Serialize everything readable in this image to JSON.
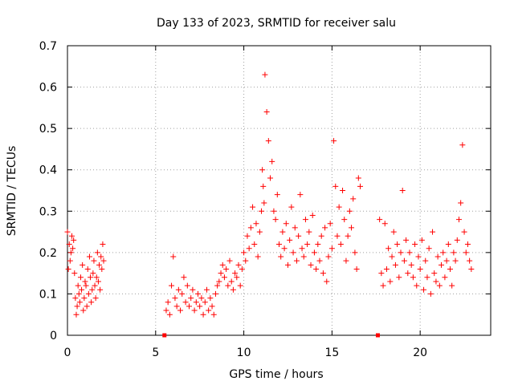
{
  "colors": {
    "series": "#ff0000",
    "axis": "#000000",
    "grid": "#a0a0a0"
  },
  "chart_data": {
    "type": "scatter",
    "title": "Day 133 of 2023, SRMTID for receiver salu",
    "xlabel": "GPS time / hours",
    "ylabel": "SRMTID / TECUs",
    "xlim": [
      0,
      24
    ],
    "ylim": [
      0,
      0.7
    ],
    "xticks": [
      0,
      5,
      10,
      15,
      20
    ],
    "xtick_labels": [
      "0",
      "5",
      "10",
      "15",
      "20"
    ],
    "yticks": [
      0,
      0.1,
      0.2,
      0.3,
      0.4,
      0.5,
      0.6,
      0.7
    ],
    "ytick_labels": [
      "0",
      "0.1",
      "0.2",
      "0.3",
      "0.4",
      "0.5",
      "0.6",
      "0.7"
    ],
    "grid": true,
    "marker": "plus",
    "zero_markers": {
      "x": [
        5.5,
        17.6
      ],
      "y": [
        0,
        0
      ]
    },
    "series": [
      {
        "name": "SRMTID",
        "x": [
          0.0,
          0.05,
          0.1,
          0.15,
          0.2,
          0.25,
          0.3,
          0.35,
          0.4,
          0.45,
          0.5,
          0.55,
          0.6,
          0.65,
          0.7,
          0.75,
          0.8,
          0.85,
          0.9,
          0.95,
          1.0,
          1.05,
          1.1,
          1.15,
          1.2,
          1.25,
          1.3,
          1.35,
          1.4,
          1.45,
          1.5,
          1.55,
          1.6,
          1.65,
          1.7,
          1.75,
          1.8,
          1.85,
          1.9,
          1.95,
          2.0,
          2.05,
          5.6,
          5.7,
          5.8,
          5.9,
          6.0,
          6.1,
          6.2,
          6.3,
          6.4,
          6.5,
          6.6,
          6.7,
          6.8,
          6.9,
          7.0,
          7.1,
          7.2,
          7.3,
          7.4,
          7.5,
          7.6,
          7.7,
          7.8,
          7.9,
          8.0,
          8.1,
          8.2,
          8.3,
          8.4,
          8.5,
          8.6,
          8.7,
          8.8,
          8.9,
          9.0,
          9.1,
          9.2,
          9.3,
          9.4,
          9.5,
          9.6,
          9.7,
          9.8,
          9.9,
          10.0,
          10.1,
          10.2,
          10.3,
          10.4,
          10.5,
          10.6,
          10.7,
          10.8,
          10.9,
          11.0,
          11.05,
          11.1,
          11.15,
          11.2,
          11.3,
          11.4,
          11.5,
          11.6,
          11.7,
          11.8,
          11.9,
          12.0,
          12.1,
          12.2,
          12.3,
          12.4,
          12.5,
          12.6,
          12.7,
          12.8,
          12.9,
          13.0,
          13.1,
          13.2,
          13.3,
          13.4,
          13.5,
          13.6,
          13.7,
          13.8,
          13.9,
          14.0,
          14.1,
          14.2,
          14.3,
          14.4,
          14.5,
          14.6,
          14.7,
          14.8,
          14.9,
          15.0,
          15.1,
          15.2,
          15.3,
          15.4,
          15.5,
          15.6,
          15.7,
          15.8,
          15.9,
          16.0,
          16.1,
          16.2,
          16.3,
          16.4,
          16.5,
          16.6,
          17.7,
          17.8,
          17.9,
          18.0,
          18.1,
          18.2,
          18.3,
          18.4,
          18.5,
          18.6,
          18.7,
          18.8,
          18.9,
          19.0,
          19.1,
          19.2,
          19.3,
          19.4,
          19.5,
          19.6,
          19.7,
          19.8,
          19.9,
          20.0,
          20.1,
          20.2,
          20.3,
          20.4,
          20.5,
          20.6,
          20.7,
          20.8,
          20.9,
          21.0,
          21.1,
          21.2,
          21.3,
          21.4,
          21.5,
          21.6,
          21.7,
          21.8,
          21.9,
          22.0,
          22.1,
          22.2,
          22.3,
          22.4,
          22.5,
          22.6,
          22.7,
          22.8,
          22.9
        ],
        "y": [
          0.25,
          0.16,
          0.22,
          0.18,
          0.2,
          0.24,
          0.21,
          0.23,
          0.15,
          0.09,
          0.05,
          0.07,
          0.12,
          0.1,
          0.08,
          0.14,
          0.11,
          0.17,
          0.06,
          0.09,
          0.13,
          0.12,
          0.07,
          0.16,
          0.1,
          0.19,
          0.14,
          0.08,
          0.11,
          0.15,
          0.18,
          0.12,
          0.09,
          0.14,
          0.2,
          0.13,
          0.17,
          0.11,
          0.19,
          0.16,
          0.22,
          0.18,
          0.06,
          0.08,
          0.05,
          0.12,
          0.19,
          0.09,
          0.07,
          0.11,
          0.06,
          0.1,
          0.14,
          0.08,
          0.12,
          0.07,
          0.09,
          0.11,
          0.06,
          0.08,
          0.1,
          0.07,
          0.09,
          0.05,
          0.08,
          0.11,
          0.06,
          0.09,
          0.07,
          0.05,
          0.1,
          0.12,
          0.13,
          0.15,
          0.17,
          0.14,
          0.16,
          0.12,
          0.18,
          0.13,
          0.11,
          0.15,
          0.14,
          0.17,
          0.12,
          0.16,
          0.2,
          0.18,
          0.24,
          0.21,
          0.26,
          0.31,
          0.22,
          0.27,
          0.19,
          0.25,
          0.3,
          0.4,
          0.36,
          0.32,
          0.63,
          0.54,
          0.47,
          0.38,
          0.42,
          0.3,
          0.28,
          0.34,
          0.22,
          0.19,
          0.25,
          0.21,
          0.27,
          0.17,
          0.23,
          0.31,
          0.2,
          0.26,
          0.18,
          0.24,
          0.34,
          0.21,
          0.19,
          0.28,
          0.22,
          0.25,
          0.17,
          0.29,
          0.2,
          0.16,
          0.22,
          0.18,
          0.24,
          0.15,
          0.26,
          0.13,
          0.19,
          0.27,
          0.21,
          0.47,
          0.36,
          0.24,
          0.31,
          0.22,
          0.35,
          0.28,
          0.18,
          0.24,
          0.3,
          0.26,
          0.33,
          0.2,
          0.16,
          0.38,
          0.36,
          0.28,
          0.15,
          0.12,
          0.27,
          0.16,
          0.21,
          0.13,
          0.19,
          0.25,
          0.17,
          0.22,
          0.14,
          0.2,
          0.35,
          0.18,
          0.23,
          0.15,
          0.2,
          0.17,
          0.14,
          0.22,
          0.12,
          0.19,
          0.16,
          0.23,
          0.11,
          0.18,
          0.14,
          0.21,
          0.1,
          0.25,
          0.15,
          0.13,
          0.19,
          0.12,
          0.17,
          0.2,
          0.14,
          0.18,
          0.22,
          0.16,
          0.12,
          0.2,
          0.18,
          0.23,
          0.28,
          0.32,
          0.46,
          0.25,
          0.2,
          0.22,
          0.18,
          0.16
        ]
      }
    ]
  }
}
